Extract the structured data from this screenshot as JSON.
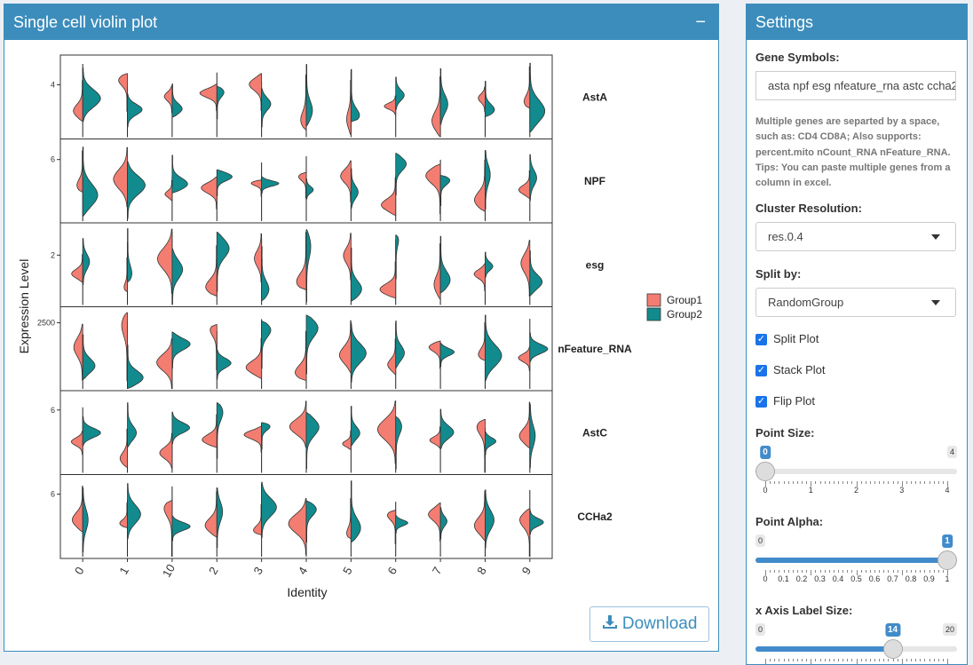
{
  "plot_panel": {
    "title": "Single cell violin plot",
    "collapse": "−",
    "download": "Download"
  },
  "chart_data": {
    "type": "violin",
    "y_label": "Expression Level",
    "x_label": "Identity",
    "categories": [
      "0",
      "1",
      "10",
      "2",
      "3",
      "4",
      "5",
      "6",
      "7",
      "8",
      "9"
    ],
    "series": [
      {
        "name": "Group1",
        "color": "#f47d72"
      },
      {
        "name": "Group2",
        "color": "#128b8e"
      }
    ],
    "facets": [
      {
        "name": "AstA",
        "ylim": [
          0,
          6.2
        ],
        "yticks": [
          4
        ]
      },
      {
        "name": "NPF",
        "ylim": [
          0,
          7.95
        ],
        "yticks": [
          6
        ]
      },
      {
        "name": "esg",
        "ylim": [
          0,
          3.25
        ],
        "yticks": [
          2
        ]
      },
      {
        "name": "nFeature_RNA",
        "ylim": [
          0,
          3090
        ],
        "yticks": [
          2500
        ]
      },
      {
        "name": "AstC",
        "ylim": [
          0,
          7.8
        ],
        "yticks": [
          6
        ]
      },
      {
        "name": "CCHa2",
        "ylim": [
          0,
          7.83
        ],
        "yticks": [
          6
        ]
      }
    ]
  },
  "settings": {
    "title": "Settings",
    "gene_symbols": {
      "label": "Gene Symbols:",
      "value": "asta npf esg nfeature_rna astc ccha2",
      "help": [
        "Multiple genes are separted by a space,",
        "such as: CD4 CD8A; Also supports:",
        "percent.mito nCount_RNA nFeature_RNA.",
        "Tips: You can paste multiple genes from a",
        "column in excel."
      ]
    },
    "cluster_resolution": {
      "label": "Cluster Resolution:",
      "value": "res.0.4"
    },
    "split_by": {
      "label": "Split by:",
      "value": "RandomGroup"
    },
    "checkboxes": [
      "Split Plot",
      "Stack Plot",
      "Flip Plot"
    ],
    "sliders": [
      {
        "label": "Point Size:",
        "min": 0,
        "max": 4,
        "value": 0,
        "ticks": [
          0,
          1,
          2,
          3,
          4
        ]
      },
      {
        "label": "Point Alpha:",
        "min": 0,
        "max": 1,
        "value": 1,
        "ticks": [
          0,
          0.1,
          0.2,
          0.3,
          0.4,
          0.5,
          0.6,
          0.7,
          0.8,
          0.9,
          1
        ]
      },
      {
        "label": "x Axis Label Size:",
        "min": 0,
        "max": 20,
        "value": 14,
        "ticks": []
      }
    ]
  }
}
